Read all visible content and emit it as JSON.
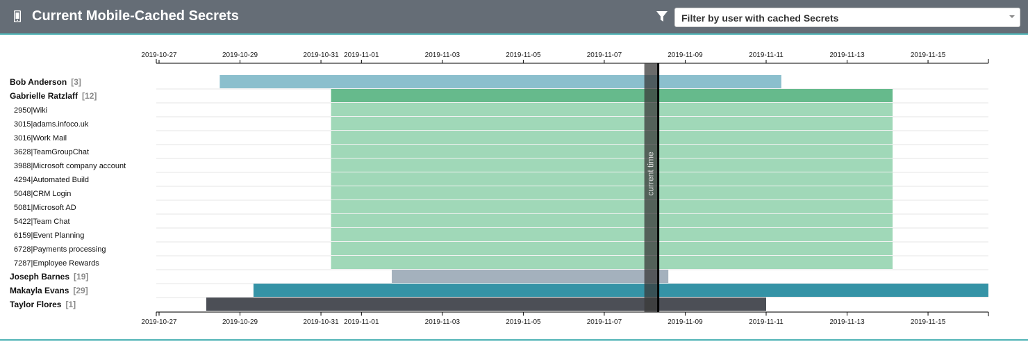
{
  "header": {
    "title": "Current Mobile-Cached Secrets",
    "icon": "mobile-phone-icon",
    "filter_icon": "filter-icon",
    "filter_placeholder": "Filter by user with cached Secrets",
    "filter_dropdown_icon": "chevron-down-icon"
  },
  "colors": {
    "header_bg": "#656d76",
    "accent": "#4fb3b5"
  },
  "chart_data": {
    "type": "gantt",
    "x_axis": {
      "kind": "date",
      "range": [
        "2019-10-27",
        "2019-11-16"
      ],
      "tick_labels": [
        "2019-10-27",
        "2019-10-29",
        "2019-10-31",
        "2019-11-01",
        "2019-11-03",
        "2019-11-05",
        "2019-11-07",
        "2019-11-09",
        "2019-11-11",
        "2019-11-13",
        "2019-11-15"
      ],
      "position": "top and bottom"
    },
    "current_time": {
      "label": "current time",
      "date": "2019-11-08 08:00"
    },
    "rows": [
      {
        "label": "Bob Anderson",
        "count": "[3]",
        "level": "user",
        "start": "2019-10-28 12:00",
        "end": "2019-11-11 09:00",
        "color": "#8bbfcd"
      },
      {
        "label": "Gabrielle Ratzlaff",
        "count": "[12]",
        "level": "user",
        "start": "2019-10-31 06:00",
        "end": "2019-11-14 03:00",
        "color": "#66ba8c"
      },
      {
        "label": "2950|Wiki",
        "level": "secret",
        "start": "2019-10-31 06:00",
        "end": "2019-11-14 03:00",
        "color": "#a0d8b8"
      },
      {
        "label": "3015|adams.infoco.uk",
        "level": "secret",
        "start": "2019-10-31 06:00",
        "end": "2019-11-14 03:00",
        "color": "#a0d8b8"
      },
      {
        "label": "3016|Work Mail",
        "level": "secret",
        "start": "2019-10-31 06:00",
        "end": "2019-11-14 03:00",
        "color": "#a0d8b8"
      },
      {
        "label": "3628|TeamGroupChat",
        "level": "secret",
        "start": "2019-10-31 06:00",
        "end": "2019-11-14 03:00",
        "color": "#a0d8b8"
      },
      {
        "label": "3988|Microsoft company account",
        "level": "secret",
        "start": "2019-10-31 06:00",
        "end": "2019-11-14 03:00",
        "color": "#a0d8b8"
      },
      {
        "label": "4294|Automated Build",
        "level": "secret",
        "start": "2019-10-31 06:00",
        "end": "2019-11-14 03:00",
        "color": "#a0d8b8"
      },
      {
        "label": "5048|CRM Login",
        "level": "secret",
        "start": "2019-10-31 06:00",
        "end": "2019-11-14 03:00",
        "color": "#a0d8b8"
      },
      {
        "label": "5081|Microsoft AD",
        "level": "secret",
        "start": "2019-10-31 06:00",
        "end": "2019-11-14 03:00",
        "color": "#a0d8b8"
      },
      {
        "label": "5422|Team Chat",
        "level": "secret",
        "start": "2019-10-31 06:00",
        "end": "2019-11-14 03:00",
        "color": "#a0d8b8"
      },
      {
        "label": "6159|Event Planning",
        "level": "secret",
        "start": "2019-10-31 06:00",
        "end": "2019-11-14 03:00",
        "color": "#a0d8b8"
      },
      {
        "label": "6728|Payments processing",
        "level": "secret",
        "start": "2019-10-31 06:00",
        "end": "2019-11-14 03:00",
        "color": "#a0d8b8"
      },
      {
        "label": "7287|Employee Rewards",
        "level": "secret",
        "start": "2019-10-31 06:00",
        "end": "2019-11-14 03:00",
        "color": "#a0d8b8"
      },
      {
        "label": "Joseph Barnes",
        "count": "[19]",
        "level": "user",
        "start": "2019-11-01 18:00",
        "end": "2019-11-08 14:00",
        "color": "#a4b1bd"
      },
      {
        "label": "Makayla Evans",
        "count": "[29]",
        "level": "user",
        "start": "2019-10-29 08:00",
        "end": "2019-11-16 23:00",
        "color": "#3593a6"
      },
      {
        "label": "Taylor Flores",
        "count": "[1]",
        "level": "user",
        "start": "2019-10-28 04:00",
        "end": "2019-11-11 00:00",
        "color": "#4c4f56"
      }
    ]
  }
}
